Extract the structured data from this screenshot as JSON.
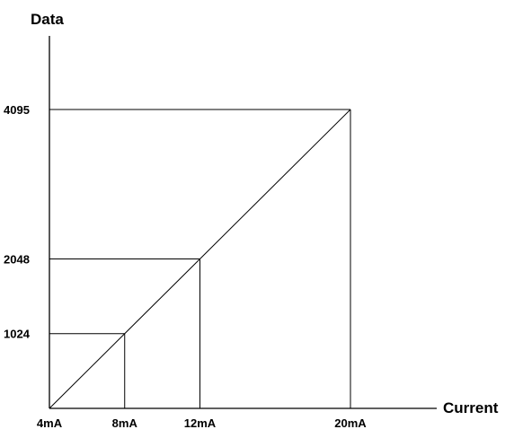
{
  "chart_data": {
    "type": "line",
    "title": "",
    "xlabel": "Current",
    "ylabel": "Data",
    "x_unit": "mA",
    "x": [
      4,
      8,
      12,
      20
    ],
    "y": [
      0,
      1024,
      2048,
      4095
    ],
    "xlim": [
      4,
      20
    ],
    "ylim": [
      0,
      4095
    ],
    "x_tick_labels": [
      "4mA",
      "8mA",
      "12mA",
      "20mA"
    ],
    "y_tick_labels": [
      "1024",
      "2048",
      "4095"
    ],
    "y_tick_values": [
      1024,
      2048,
      4095
    ],
    "series": [
      {
        "values": [
          [
            4,
            0
          ],
          [
            8,
            1024
          ],
          [
            12,
            2048
          ],
          [
            20,
            4095
          ]
        ]
      }
    ],
    "guide_lines": true,
    "grid": false,
    "line_color": "#000000"
  }
}
